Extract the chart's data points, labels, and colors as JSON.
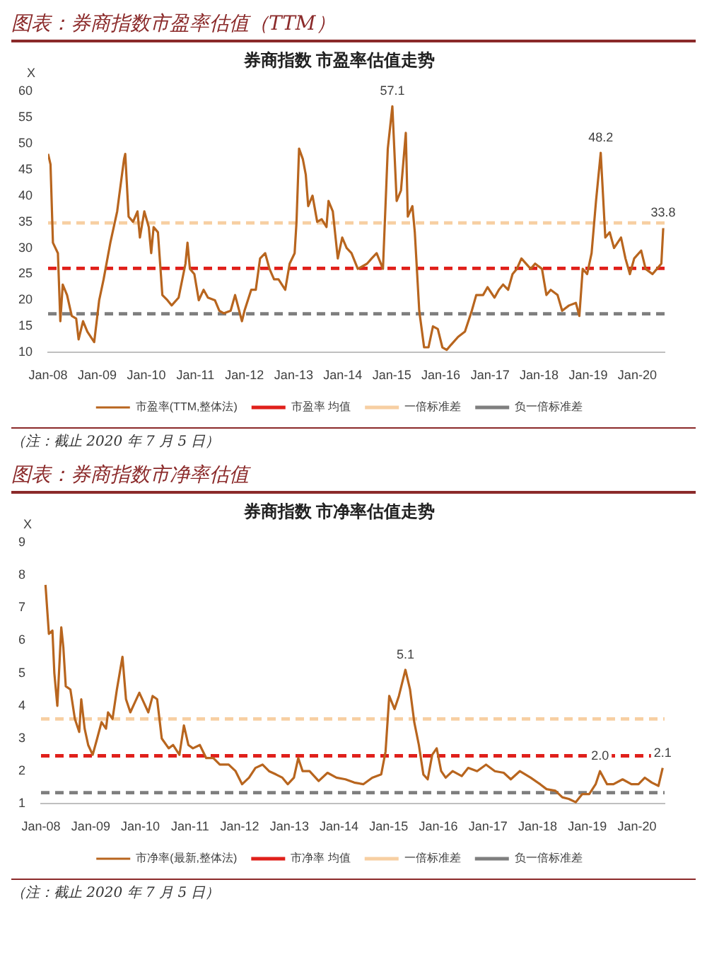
{
  "chart_data": [
    {
      "type": "line",
      "title": "图表：券商指数市盈率估值（TTM）",
      "subtitle": "券商指数 市盈率估值走势",
      "ylabel": "X",
      "legend": "bottom",
      "grid": false,
      "marker": "none",
      "line_style": "solid",
      "xlim": [
        "2008-01-01",
        "2020-07-22"
      ],
      "xticks": [
        {
          "value": "2008-01-01",
          "label": "Jan-08"
        },
        {
          "value": "2009-01-01",
          "label": "Jan-09"
        },
        {
          "value": "2010-01-01",
          "label": "Jan-10"
        },
        {
          "value": "2011-01-01",
          "label": "Jan-11"
        },
        {
          "value": "2012-01-01",
          "label": "Jan-12"
        },
        {
          "value": "2013-01-01",
          "label": "Jan-13"
        },
        {
          "value": "2014-01-01",
          "label": "Jan-14"
        },
        {
          "value": "2015-01-01",
          "label": "Jan-15"
        },
        {
          "value": "2016-01-01",
          "label": "Jan-16"
        },
        {
          "value": "2017-01-01",
          "label": "Jan-17"
        },
        {
          "value": "2018-01-01",
          "label": "Jan-18"
        },
        {
          "value": "2019-01-01",
          "label": "Jan-19"
        },
        {
          "value": "2020-01-01",
          "label": "Jan-20"
        }
      ],
      "ylim": [
        10,
        60
      ],
      "yticks": [
        10,
        15,
        20,
        25,
        30,
        35,
        40,
        45,
        50,
        55,
        60
      ],
      "x": [
        "2008-01-01",
        "2008-01-19",
        "2008-02-06",
        "2008-03-14",
        "2008-04-01",
        "2008-04-19",
        "2008-05-21",
        "2008-06-25",
        "2008-07-28",
        "2008-08-15",
        "2008-09-17",
        "2008-10-19",
        "2008-12-09",
        "2009-01-15",
        "2009-02-17",
        "2009-04-08",
        "2009-05-29",
        "2009-06-13",
        "2009-07-19",
        "2009-07-28",
        "2009-08-22",
        "2009-09-24",
        "2009-10-27",
        "2009-11-14",
        "2009-12-17",
        "2010-01-19",
        "2010-02-06",
        "2010-02-24",
        "2010-03-28",
        "2010-04-30",
        "2010-06-07",
        "2010-07-08",
        "2010-08-29",
        "2010-10-19",
        "2010-11-03",
        "2010-11-21",
        "2010-12-24",
        "2011-01-26",
        "2011-03-03",
        "2011-04-04",
        "2011-05-26",
        "2011-06-28",
        "2011-07-31",
        "2011-09-20",
        "2011-10-23",
        "2011-12-13",
        "2012-01-01",
        "2012-02-20",
        "2012-03-25",
        "2012-04-26",
        "2012-06-03",
        "2012-07-05",
        "2012-08-08",
        "2012-09-10",
        "2012-10-30",
        "2012-12-02",
        "2013-01-08",
        "2013-01-22",
        "2013-02-10",
        "2013-03-10",
        "2013-04-01",
        "2013-04-19",
        "2013-05-21",
        "2013-06-25",
        "2013-07-28",
        "2013-09-02",
        "2013-09-17",
        "2013-10-19",
        "2013-11-25",
        "2013-12-28",
        "2014-01-30",
        "2014-03-07",
        "2014-04-23",
        "2014-07-01",
        "2014-08-04",
        "2014-09-10",
        "2014-10-27",
        "2014-12-02",
        "2015-01-05",
        "2015-02-06",
        "2015-03-10",
        "2015-04-15",
        "2015-04-30",
        "2015-06-03",
        "2015-06-21",
        "2015-07-24",
        "2015-08-29",
        "2015-10-01",
        "2015-11-03",
        "2015-12-09",
        "2016-01-12",
        "2016-02-13",
        "2016-03-17",
        "2016-05-08",
        "2016-06-28",
        "2016-08-18",
        "2016-09-20",
        "2016-11-10",
        "2016-12-13",
        "2017-02-03",
        "2017-03-07",
        "2017-04-08",
        "2017-05-15",
        "2017-06-17",
        "2017-07-19",
        "2017-08-22",
        "2017-10-30",
        "2017-12-02",
        "2018-01-22",
        "2018-02-24",
        "2018-03-28",
        "2018-05-18",
        "2018-06-21",
        "2018-08-11",
        "2018-10-01",
        "2018-10-27",
        "2018-11-21",
        "2018-12-24",
        "2019-01-26",
        "2019-02-28",
        "2019-04-04",
        "2019-05-08",
        "2019-06-10",
        "2019-07-12",
        "2019-09-02",
        "2019-10-05",
        "2019-11-07",
        "2019-12-09",
        "2020-01-30",
        "2020-03-03",
        "2020-04-23",
        "2020-05-26",
        "2020-06-28",
        "2020-07-12"
      ],
      "series": [
        {
          "name": "市盈率(TTM,整体法)",
          "color": "#b8651e",
          "values": [
            48,
            46,
            31,
            29,
            16,
            23,
            21,
            17,
            16.5,
            12.5,
            16,
            14,
            12,
            20,
            24,
            31,
            37,
            40,
            47,
            48,
            36,
            35,
            37,
            32,
            37,
            34,
            29,
            34,
            33,
            21,
            20,
            19,
            20.5,
            27,
            31,
            26,
            25,
            20,
            22,
            20.5,
            20,
            18,
            17.5,
            18,
            21,
            16,
            18,
            22,
            22,
            28,
            29,
            26,
            24,
            24,
            22,
            27,
            29,
            35,
            49,
            47,
            44,
            38,
            40,
            35,
            35.5,
            34,
            39,
            37,
            28,
            32,
            30,
            29,
            26,
            27,
            28,
            29,
            26,
            49,
            57.1,
            39,
            41,
            52,
            36,
            38,
            33,
            18,
            11,
            11,
            15,
            14.5,
            11,
            10.5,
            11.5,
            13,
            14,
            18,
            21,
            21,
            22.5,
            20.5,
            22,
            23,
            22,
            25,
            26,
            28,
            26,
            27,
            26,
            21,
            22,
            21,
            18,
            19,
            19.5,
            17,
            26,
            25,
            29,
            39,
            48.2,
            32,
            33,
            30,
            32,
            28,
            25,
            28,
            29.5,
            26,
            25,
            26,
            27,
            33.8
          ]
        }
      ],
      "ref_lines": [
        {
          "axis": "y",
          "value": 26.1,
          "label": "市盈率 均值",
          "color": "#e0201b",
          "line_style": "dashed"
        },
        {
          "axis": "y",
          "value": 34.8,
          "label": "一倍标准差",
          "color": "#f7cfa2",
          "line_style": "dashed"
        },
        {
          "axis": "y",
          "value": 17.4,
          "label": "负一倍标准差",
          "color": "#7f7f7f",
          "line_style": "dashed"
        }
      ],
      "annotations": [
        {
          "text": "57.1",
          "x": "2015-01-05",
          "y": 57.1
        },
        {
          "text": "48.2",
          "x": "2019-04-04",
          "y": 48.2
        },
        {
          "text": "33.8",
          "x": "2020-07-12",
          "y": 33.8
        },
        "（注：截止 2020 年 7 月 5 日）"
      ]
    },
    {
      "type": "line",
      "title": "图表：券商指数市净率估值",
      "subtitle": "券商指数 市净率估值走势",
      "ylabel": "X",
      "legend": "bottom",
      "grid": false,
      "marker": "none",
      "line_style": "solid",
      "xlim": [
        "2008-01-01",
        "2020-07-22"
      ],
      "xticks": [
        {
          "value": "2008-01-01",
          "label": "Jan-08"
        },
        {
          "value": "2009-01-01",
          "label": "Jan-09"
        },
        {
          "value": "2010-01-01",
          "label": "Jan-10"
        },
        {
          "value": "2011-01-01",
          "label": "Jan-11"
        },
        {
          "value": "2012-01-01",
          "label": "Jan-12"
        },
        {
          "value": "2013-01-01",
          "label": "Jan-13"
        },
        {
          "value": "2014-01-01",
          "label": "Jan-14"
        },
        {
          "value": "2015-01-01",
          "label": "Jan-15"
        },
        {
          "value": "2016-01-01",
          "label": "Jan-16"
        },
        {
          "value": "2017-01-01",
          "label": "Jan-17"
        },
        {
          "value": "2018-01-01",
          "label": "Jan-18"
        },
        {
          "value": "2019-01-01",
          "label": "Jan-19"
        },
        {
          "value": "2020-01-01",
          "label": "Jan-20"
        }
      ],
      "ylim": [
        1,
        9
      ],
      "yticks": [
        1,
        2,
        3,
        4,
        5,
        6,
        7,
        8,
        9
      ],
      "x": [
        "2008-02-03",
        "2008-02-28",
        "2008-03-25",
        "2008-04-08",
        "2008-04-30",
        "2008-05-29",
        "2008-06-13",
        "2008-07-01",
        "2008-08-04",
        "2008-09-06",
        "2008-10-08",
        "2008-10-23",
        "2008-11-17",
        "2008-12-13",
        "2009-01-15",
        "2009-02-17",
        "2009-03-21",
        "2009-04-23",
        "2009-05-08",
        "2009-06-10",
        "2009-07-12",
        "2009-08-22",
        "2009-09-17",
        "2009-10-19",
        "2009-11-21",
        "2009-12-24",
        "2010-01-26",
        "2010-02-28",
        "2010-04-01",
        "2010-05-04",
        "2010-06-07",
        "2010-07-28",
        "2010-08-29",
        "2010-10-15",
        "2010-11-17",
        "2010-12-20",
        "2011-01-22",
        "2011-03-14",
        "2011-04-30",
        "2011-06-21",
        "2011-08-08",
        "2011-10-12",
        "2011-12-02",
        "2012-01-19",
        "2012-03-10",
        "2012-04-26",
        "2012-06-17",
        "2012-08-04",
        "2012-09-24",
        "2012-11-10",
        "2012-12-20",
        "2013-02-03",
        "2013-03-07",
        "2013-04-08",
        "2013-05-29",
        "2013-08-04",
        "2013-10-08",
        "2013-12-13",
        "2014-02-17",
        "2014-04-23",
        "2014-06-28",
        "2014-09-02",
        "2014-11-07",
        "2014-12-09",
        "2015-01-05",
        "2015-02-13",
        "2015-03-17",
        "2015-05-04",
        "2015-06-07",
        "2015-07-08",
        "2015-08-11",
        "2015-09-13",
        "2015-10-15",
        "2015-11-17",
        "2015-12-20",
        "2016-01-22",
        "2016-02-24",
        "2016-04-15",
        "2016-06-21",
        "2016-08-08",
        "2016-10-12",
        "2016-12-17",
        "2017-02-20",
        "2017-04-26",
        "2017-06-17",
        "2017-08-22",
        "2017-11-10",
        "2018-01-19",
        "2018-03-07",
        "2018-05-11",
        "2018-07-01",
        "2018-08-18",
        "2018-10-08",
        "2018-11-25",
        "2019-01-15",
        "2019-03-03",
        "2019-04-04",
        "2019-05-26",
        "2019-07-12",
        "2019-09-17",
        "2019-11-21",
        "2020-01-12",
        "2020-02-28",
        "2020-04-19",
        "2020-06-07",
        "2020-07-08"
      ],
      "series": [
        {
          "name": "市净率(最新,整体法)",
          "color": "#b8651e",
          "values": [
            7.7,
            6.2,
            6.3,
            5.0,
            4.0,
            6.4,
            5.8,
            4.6,
            4.5,
            3.6,
            3.2,
            4.2,
            3.3,
            2.8,
            2.5,
            3.0,
            3.5,
            3.3,
            3.8,
            3.6,
            4.5,
            5.5,
            4.2,
            3.8,
            4.1,
            4.4,
            4.1,
            3.8,
            4.3,
            4.2,
            3.0,
            2.7,
            2.8,
            2.5,
            3.4,
            2.8,
            2.7,
            2.8,
            2.4,
            2.4,
            2.2,
            2.2,
            2.0,
            1.6,
            1.8,
            2.1,
            2.2,
            2.0,
            1.9,
            1.8,
            1.6,
            1.8,
            2.4,
            2.0,
            2.0,
            1.7,
            1.95,
            1.8,
            1.75,
            1.65,
            1.6,
            1.8,
            1.9,
            2.6,
            4.3,
            3.9,
            4.3,
            5.1,
            4.5,
            3.5,
            2.8,
            1.9,
            1.75,
            2.5,
            2.7,
            2.0,
            1.8,
            2.0,
            1.85,
            2.1,
            2.0,
            2.2,
            2.0,
            1.95,
            1.75,
            2.0,
            1.8,
            1.6,
            1.45,
            1.4,
            1.2,
            1.15,
            1.05,
            1.3,
            1.3,
            1.6,
            2.0,
            1.6,
            1.6,
            1.75,
            1.6,
            1.6,
            1.8,
            1.65,
            1.55,
            2.1
          ]
        }
      ],
      "ref_lines": [
        {
          "axis": "y",
          "value": 2.47,
          "label": "市净率 均值",
          "color": "#e0201b",
          "line_style": "dashed"
        },
        {
          "axis": "y",
          "value": 3.6,
          "label": "一倍标准差",
          "color": "#f7cfa2",
          "line_style": "dashed"
        },
        {
          "axis": "y",
          "value": 1.34,
          "label": "负一倍标准差",
          "color": "#7f7f7f",
          "line_style": "dashed"
        }
      ],
      "annotations": [
        {
          "text": "5.1",
          "x": "2015-05-04",
          "y": 5.1
        },
        {
          "text": "2.0",
          "x": "2019-04-04",
          "y": 2.0
        },
        {
          "text": "2.1",
          "x": "2020-07-08",
          "y": 2.1
        },
        "（注：截止 2020 年 7 月 5 日）"
      ]
    }
  ]
}
